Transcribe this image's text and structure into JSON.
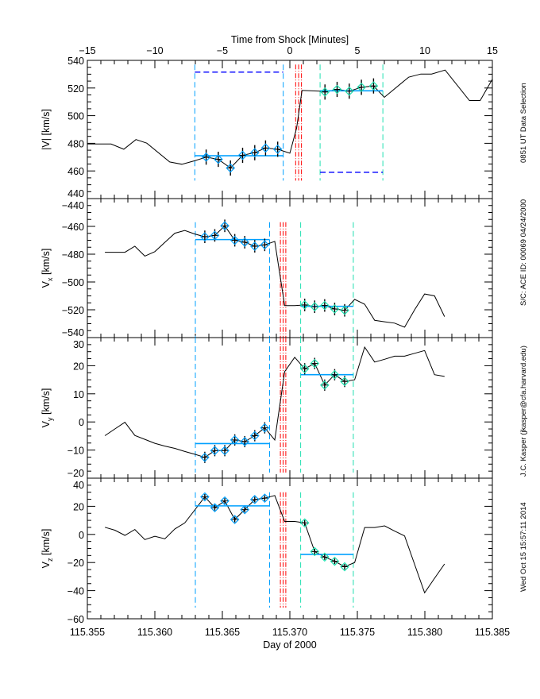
{
  "chart_data": {
    "type": "line",
    "top_axis": {
      "xlabel": "Time from Shock [Minutes]",
      "xlim": [
        -15,
        15
      ],
      "ticks": [
        -15,
        -10,
        -5,
        0,
        5,
        10,
        15
      ],
      "tick_labels": [
        "−15",
        "−10",
        "−5",
        "0",
        "5",
        "10",
        "15"
      ]
    },
    "bottom_axis": {
      "xlabel": "Day of 2000",
      "xlim": [
        115.355,
        115.385
      ],
      "ticks": [
        115.355,
        115.36,
        115.365,
        115.37,
        115.375,
        115.38,
        115.385
      ],
      "tick_labels": [
        "115.355",
        "115.360",
        "115.365",
        "115.370",
        "115.375",
        "115.380",
        "115.385"
      ]
    },
    "side_notes": [
      "Wed Oct 15 15:57:11 2014",
      "J.C. Kasper (jkasper@cfa.harvard.edu)",
      "S/C: ACE ID: 00069 04/24/2000",
      "0851 UT Data Selection"
    ],
    "colors": {
      "line": "#000000",
      "upstream": "#00a0ff",
      "downstream": "#20e0b0",
      "shock": "#ff0000",
      "range_marker": "#0000ff"
    },
    "panels": [
      {
        "id": "speed",
        "ylabel_main": "|V| [km/s]",
        "ylim": [
          440,
          540
        ],
        "yticks": [
          440,
          460,
          480,
          500,
          520,
          540
        ],
        "ytick_labels": [
          "440",
          "460",
          "480",
          "500",
          "520",
          "540"
        ],
        "x_units": "minutes",
        "x": [
          -15,
          -13.25,
          -12.3,
          -11.4,
          -10.6,
          -8.9,
          -8.0,
          -7.0,
          -6.2,
          -5.3,
          -4.4,
          -3.5,
          -2.6,
          -1.8,
          -0.9,
          0.0,
          0.5,
          0.9,
          2.2,
          2.6,
          3.5,
          4.4,
          5.3,
          6.2,
          7.0,
          8.8,
          9.7,
          10.5,
          11.5,
          13.3,
          14.1,
          15
        ],
        "values": [
          479.5,
          479.5,
          475.7,
          482.7,
          480.1,
          466.5,
          464.8,
          467.5,
          470,
          468.4,
          462.1,
          471.3,
          473.2,
          476.6,
          475.7,
          472.8,
          491,
          518.2,
          517.7,
          517.1,
          519,
          517.7,
          520.5,
          521.5,
          513.3,
          527.8,
          530.1,
          530.1,
          533,
          511,
          511,
          526.3
        ],
        "upstream_samples": [
          8,
          9,
          10,
          11,
          12,
          13,
          14
        ],
        "downstream_samples": [
          19,
          20,
          21,
          22,
          23
        ],
        "error": 5.5,
        "upstream_window": [
          -7.04,
          -0.49
        ],
        "downstream_window": [
          2.24,
          6.89
        ],
        "shock_lines": [
          0.43,
          0.65,
          0.86
        ],
        "upstream_mean": 471,
        "downstream_mean": 518,
        "range_markers": [
          531.5,
          459
        ]
      },
      {
        "id": "vx",
        "ylabel_main": "V",
        "ylabel_sub": "x",
        "ylabel_unit": " [km/s]",
        "ylim": [
          -540,
          -440
        ],
        "yticks": [
          -540,
          -520,
          -500,
          -480,
          -460,
          -440
        ],
        "ytick_labels": [
          "−540",
          "−520",
          "−500",
          "−480",
          "−460",
          "−440"
        ],
        "x_units": "day",
        "values": [
          -478.6,
          -478.6,
          -478.6,
          -474.3,
          -481.4,
          -478.2,
          -471.5,
          -464.9,
          -462.9,
          -465.5,
          -467.5,
          -466.5,
          -459.6,
          -470,
          -471.4,
          -474.3,
          -473.3,
          -470.8,
          -517,
          -517,
          -516.5,
          -517.8,
          -516.9,
          -519.4,
          -520.4,
          -512.5,
          -516,
          -527.6,
          -528.6,
          -529.6,
          -532.5,
          -520,
          -508.6,
          -510,
          -524.9
        ],
        "upstream_samples": [
          10,
          11,
          12,
          13,
          14,
          15,
          16
        ],
        "downstream_samples": [
          20,
          21,
          22,
          23,
          24
        ],
        "error": 4.5,
        "upstream_mean": -469.5,
        "downstream_mean": -517.5
      },
      {
        "id": "vy",
        "ylabel_main": "V",
        "ylabel_sub": "y",
        "ylabel_unit": " [km/s]",
        "ylim": [
          -20,
          30
        ],
        "yticks": [
          -20,
          -10,
          0,
          10,
          20,
          30
        ],
        "ytick_labels": [
          "−20",
          "−10",
          "0",
          "10",
          "20",
          "30"
        ],
        "x_units": "day",
        "values": [
          -4.9,
          -2.5,
          -0.1,
          -4.8,
          -6.2,
          -7.6,
          -8.6,
          -9.4,
          -10.5,
          -11.5,
          -12.6,
          -10.2,
          -10.2,
          -6.4,
          -7.0,
          -4.9,
          -2.1,
          -6.4,
          17.9,
          23.0,
          18.9,
          20.8,
          13.1,
          16.8,
          14.4,
          15.0,
          26.6,
          21.3,
          22.3,
          23.4,
          23.4,
          24.4,
          25.4,
          16.8,
          16.2
        ],
        "upstream_samples": [
          10,
          11,
          12,
          13,
          14,
          15,
          16
        ],
        "downstream_samples": [
          20,
          21,
          22,
          23,
          24
        ],
        "error": 2.0,
        "upstream_mean": -7.7,
        "downstream_mean": 16.8
      },
      {
        "id": "vz",
        "ylabel_main": "V",
        "ylabel_sub": "z",
        "ylabel_unit": " [km/s]",
        "ylim": [
          -60,
          40
        ],
        "yticks": [
          -60,
          -40,
          -20,
          0,
          20,
          40
        ],
        "ytick_labels": [
          "−60",
          "−40",
          "−20",
          "0",
          "20",
          "40"
        ],
        "x_units": "day",
        "values": [
          5.1,
          3.0,
          -0.7,
          3.5,
          -3.7,
          -1.3,
          -3.1,
          3.9,
          8.2,
          17.4,
          26.7,
          19.0,
          23.8,
          10.6,
          17.6,
          24.8,
          25.8,
          27.7,
          9.2,
          9.2,
          8.2,
          -12.2,
          -16.1,
          -19.1,
          -23.0,
          -20.0,
          4.9,
          4.9,
          6.1,
          2.4,
          -1.1,
          -21.3,
          -41.5,
          -31.2,
          -21.0
        ],
        "upstream_samples": [
          10,
          11,
          12,
          13,
          14,
          15,
          16
        ],
        "downstream_samples": [
          20,
          21,
          22,
          23,
          24
        ],
        "error": 2.0,
        "upstream_mean": 20.3,
        "downstream_mean": -14.2
      }
    ],
    "day_series": {
      "start_day": 115.3563,
      "step_day": 0.00074,
      "count": 35,
      "upstream_window": [
        115.363,
        115.3685
      ],
      "downstream_window": [
        115.3708,
        115.3747
      ],
      "shock_lines": [
        115.3693,
        115.3695,
        115.3697
      ]
    }
  }
}
